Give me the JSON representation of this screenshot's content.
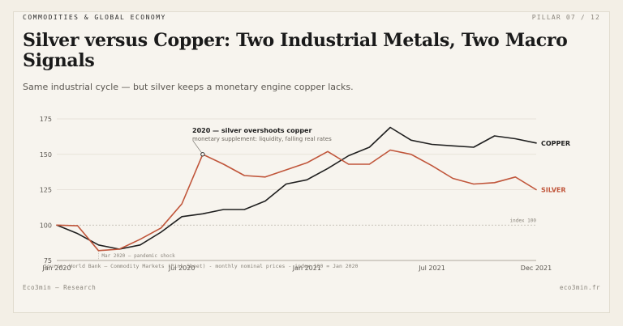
{
  "header": {
    "kicker": "COMMODITIES & GLOBAL ECONOMY",
    "pager": "PILLAR 07 / 12",
    "title": "Silver versus Copper: Two Industrial Metals, Two Macro Signals",
    "subtitle": "Same industrial cycle — but silver keeps a monetary engine copper lacks."
  },
  "chart_data": {
    "type": "line",
    "x": [
      "2020-01",
      "2020-02",
      "2020-03",
      "2020-04",
      "2020-05",
      "2020-06",
      "2020-07",
      "2020-08",
      "2020-09",
      "2020-10",
      "2020-11",
      "2020-12",
      "2021-01",
      "2021-02",
      "2021-03",
      "2021-04",
      "2021-05",
      "2021-06",
      "2021-07",
      "2021-08",
      "2021-09",
      "2021-10",
      "2021-11",
      "2021-12"
    ],
    "x_tick_labels": [
      "Jan 2020",
      "Jul 2020",
      "Jan 2021",
      "Jul 2021",
      "Dec 2021"
    ],
    "x_tick_index": [
      0,
      6,
      12,
      18,
      23
    ],
    "ylim": [
      75,
      175
    ],
    "yticks": [
      75,
      100,
      125,
      150,
      175
    ],
    "grid": true,
    "series": [
      {
        "name": "COPPER",
        "color": "#1f1f1f",
        "values": [
          100,
          94,
          86,
          83,
          86,
          95,
          106,
          108,
          111,
          111,
          117,
          129,
          132,
          140,
          149,
          155,
          169,
          160,
          157,
          156,
          155,
          163,
          161,
          158
        ]
      },
      {
        "name": "SILVER",
        "color": "#c0553a",
        "values": [
          100,
          99.5,
          82,
          83,
          90,
          98,
          115,
          150,
          143,
          135,
          134,
          139,
          144,
          152,
          143,
          143,
          153,
          150,
          142,
          133,
          129,
          130,
          134,
          125
        ]
      }
    ],
    "reference_line": {
      "value": 100,
      "label": "index 100"
    },
    "annotations": [
      {
        "title": "2020 — silver overshoots copper",
        "text": "monetary supplement: liquidity, falling real rates",
        "series": "SILVER",
        "index": 7
      },
      {
        "text": "Mar 2020 — pandemic shock",
        "index": 2
      }
    ]
  },
  "source": "Source: World Bank — Commodity Markets (Pink Sheet) - monthly nominal prices - index 100 = Jan 2020",
  "footer": {
    "left": "Eco3min — Research",
    "right": "eco3min.fr"
  },
  "colors": {
    "background": "#f7f4ee",
    "copper": "#1f1f1f",
    "silver": "#c0553a",
    "grid": "#e2ddd3"
  }
}
